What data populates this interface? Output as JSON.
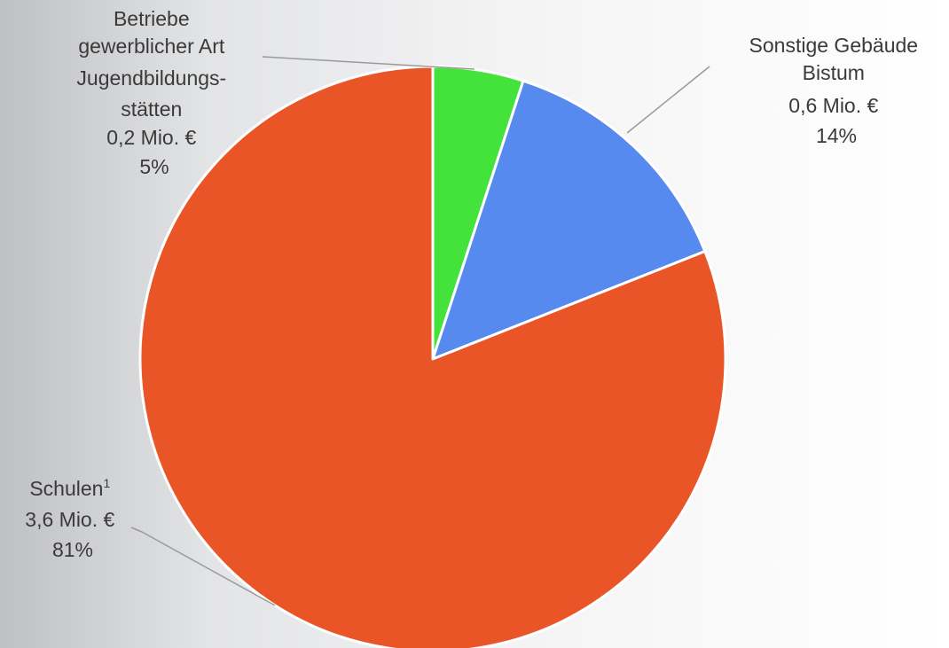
{
  "chart_data": {
    "type": "pie",
    "title": "",
    "start_angle_deg": 0,
    "direction": "clockwise",
    "slices": [
      {
        "name": "Betriebe gewerblicher Art Jugendbildungsstätten",
        "value_label": "0,2 Mio. €",
        "value": 0.2,
        "percent": 5,
        "percent_label": "5%",
        "color": "#44e33c",
        "label_lines": [
          "Betriebe",
          "gewerblicher Art",
          "Jugendbildungs-",
          "stätten",
          "0,2 Mio. €",
          "5%"
        ]
      },
      {
        "name": "Sonstige Gebäude Bistum",
        "value_label": "0,6 Mio. €",
        "value": 0.6,
        "percent": 14,
        "percent_label": "14%",
        "color": "#578aee",
        "label_lines": [
          "Sonstige Gebäude",
          "Bistum",
          "0,6 Mio. €",
          "14%"
        ]
      },
      {
        "name": "Schulen",
        "footnote_mark": "1",
        "value_label": "3,6 Mio. €",
        "value": 3.6,
        "percent": 81,
        "percent_label": "81%",
        "color": "#e95527",
        "label_lines": [
          "Schulen",
          "3,6 Mio. €",
          "81%"
        ]
      }
    ]
  }
}
